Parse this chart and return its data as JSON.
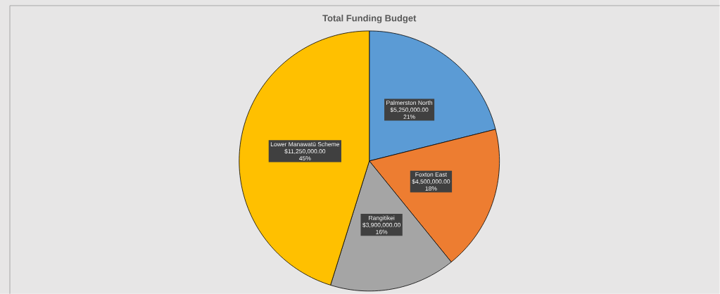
{
  "chart_data": {
    "type": "pie",
    "title": "Total Funding Budget",
    "categories": [
      "Palmerston North",
      "Foxton East",
      "Rangitikei",
      "Lower Manawatū Scheme"
    ],
    "values": [
      5250000,
      4500000,
      3900000,
      11250000
    ],
    "colors": [
      "#5b9bd5",
      "#ed7d31",
      "#a5a5a5",
      "#ffc000"
    ],
    "value_labels": [
      "$5,250,000.00",
      "$4,500,000.00",
      "$3,900,000.00",
      "$11,250,000.00"
    ],
    "annotations": [
      {
        "text": "21%",
        "x": "Palmerston North"
      },
      {
        "text": "18%",
        "x": "Foxton East"
      },
      {
        "text": "16%",
        "x": "Rangitikei"
      },
      {
        "text": "45%",
        "x": "Lower Manawatū Scheme"
      }
    ]
  }
}
